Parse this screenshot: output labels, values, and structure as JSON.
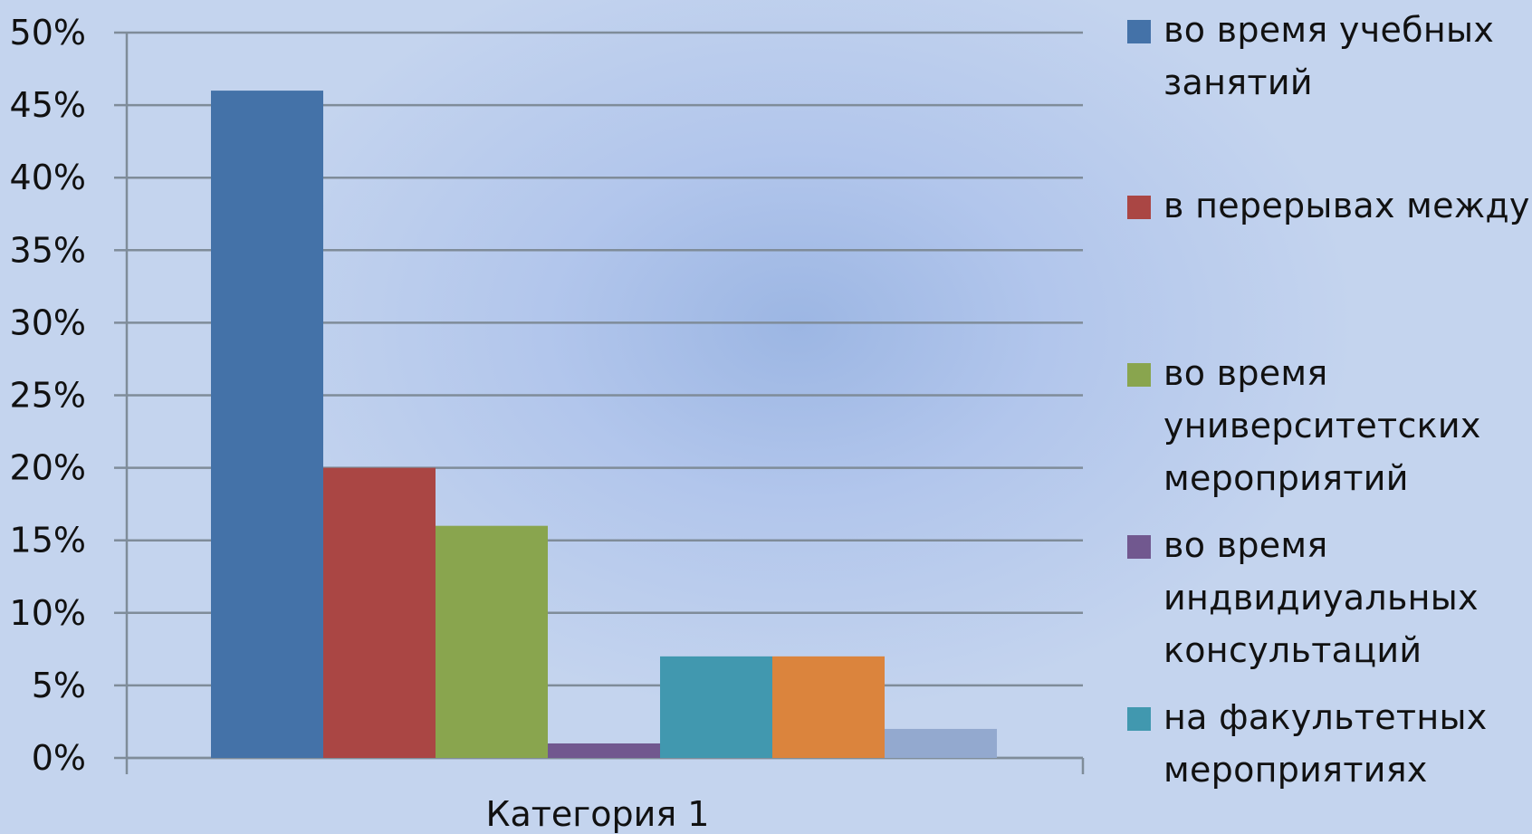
{
  "chart_data": {
    "type": "bar",
    "categories": [
      "Категория 1"
    ],
    "series": [
      {
        "name": "во время учебных занятий",
        "values": [
          0.46
        ],
        "color": "#4472a8"
      },
      {
        "name": "в перерывах между",
        "values": [
          0.2
        ],
        "color": "#aa4644"
      },
      {
        "name": "во время университетских мероприятий",
        "values": [
          0.16
        ],
        "color": "#89a54e"
      },
      {
        "name": "во время индвидиуальных консультаций",
        "values": [
          0.01
        ],
        "color": "#71588f"
      },
      {
        "name": "на факультетных мероприятиях",
        "values": [
          0.07
        ],
        "color": "#4198af"
      },
      {
        "name": "",
        "values": [
          0.07
        ],
        "color": "#db843d"
      },
      {
        "name": "",
        "values": [
          0.02
        ],
        "color": "#93a9cf"
      }
    ],
    "ylim": [
      0,
      0.5
    ],
    "yticks": [
      "0%",
      "5%",
      "10%",
      "15%",
      "20%",
      "25%",
      "30%",
      "35%",
      "40%",
      "45%",
      "50%"
    ],
    "grid": true,
    "legend_position": "right",
    "title": "",
    "xlabel": "",
    "ylabel": ""
  },
  "legend": [
    {
      "label": "во время учебных\nзанятий",
      "color": "#4472a8"
    },
    {
      "label": "в перерывах между",
      "color": "#aa4644"
    },
    {
      "label": "во время\nуниверситетских\nмероприятий",
      "color": "#89a54e"
    },
    {
      "label": "во время\nиндвидиуальных\nконсультаций",
      "color": "#71588f"
    },
    {
      "label": "на факультетных\nмероприятиях",
      "color": "#4198af"
    }
  ]
}
